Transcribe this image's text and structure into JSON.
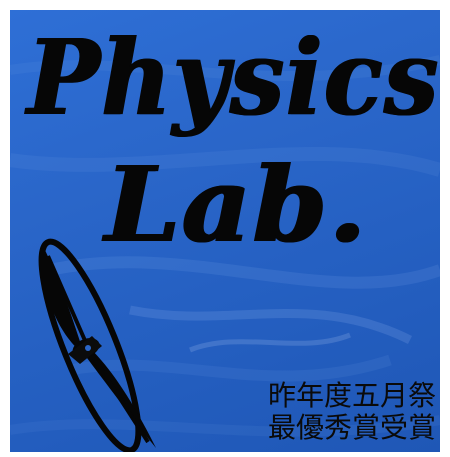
{
  "title": {
    "line1": "Physics",
    "line2": "Lab."
  },
  "caption": {
    "line1": "昨年度五月祭",
    "line2": "最優秀賞受賞"
  },
  "colors": {
    "background": "#2a66c9",
    "ink": "#060606"
  },
  "icons": {
    "emblem": "oval-racket-emblem-icon"
  }
}
